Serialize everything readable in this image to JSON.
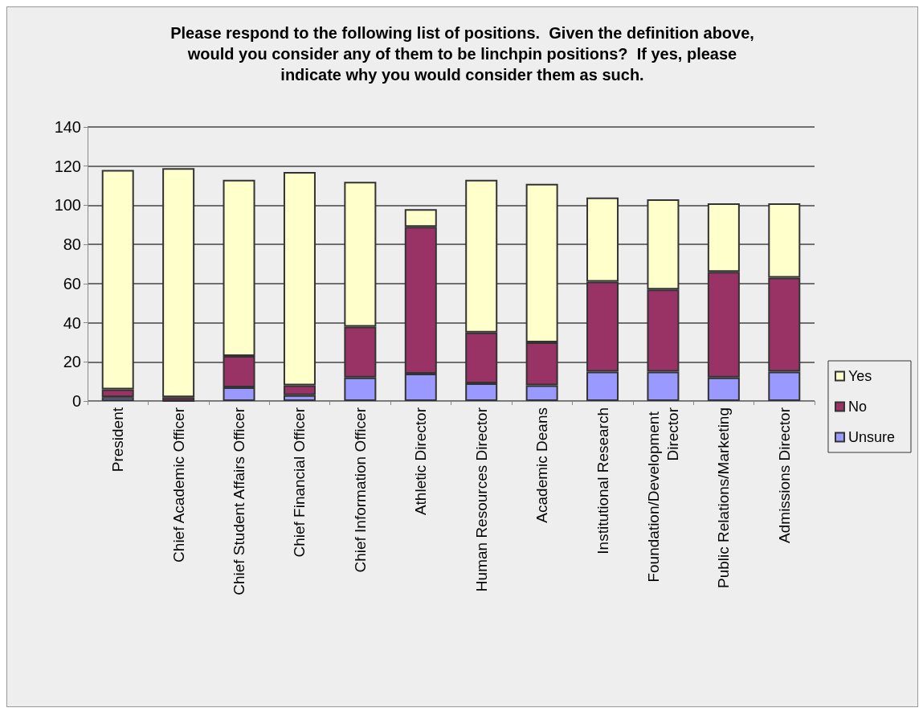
{
  "chart_data": {
    "type": "bar",
    "title": "Please respond to the following list of positions.  Given the definition above,\nwould you consider any of them to be linchpin positions?  If yes, please\nindicate why you would consider them as such.",
    "categories": [
      "President",
      "Chief Academic Officer",
      "Chief Student Affairs Officer",
      "Chief Financial Officer",
      "Chief Information Officer",
      "Athletic Director",
      "Human Resources Director",
      "Academic Deans",
      "Institutional Research",
      "Foundation/Development Director",
      "Public Relations/Marketing",
      "Admissions Director"
    ],
    "stacked": true,
    "series": [
      {
        "name": "Unsure",
        "color": "#9999ff",
        "values": [
          2,
          0,
          7,
          3,
          12,
          14,
          9,
          8,
          15,
          15,
          12,
          15
        ]
      },
      {
        "name": "No",
        "color": "#993366",
        "values": [
          4,
          2,
          16,
          5,
          26,
          75,
          26,
          22,
          46,
          42,
          54,
          48
        ]
      },
      {
        "name": "Yes",
        "color": "#ffffcc",
        "values": [
          112,
          117,
          90,
          109,
          74,
          9,
          78,
          81,
          43,
          46,
          35,
          38
        ]
      }
    ],
    "ylim": [
      0,
      140
    ],
    "yticks": [
      0,
      20,
      40,
      60,
      80,
      100,
      120,
      140
    ],
    "grid": "y",
    "legend": "right"
  }
}
